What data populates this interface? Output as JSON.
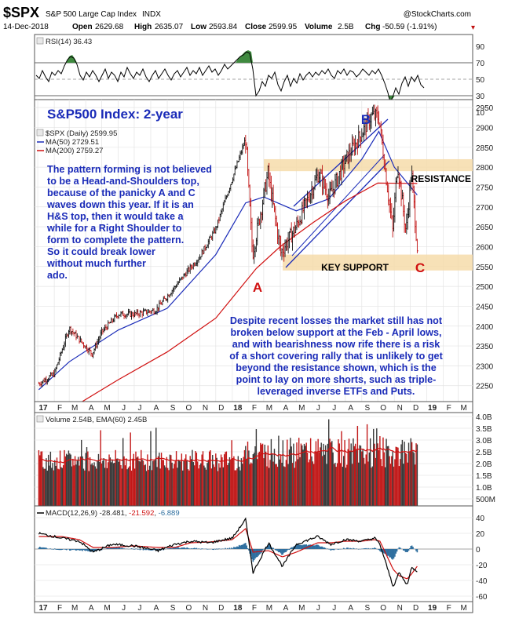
{
  "header": {
    "symbol": "$SPX",
    "name": "S&P 500 Large Cap Index",
    "exchange": "INDX",
    "watermark": "@StockCharts.com",
    "date": "14-Dec-2018",
    "open_label": "Open",
    "open": "2629.68",
    "high_label": "High",
    "high": "2635.07",
    "low_label": "Low",
    "low": "2593.84",
    "close_label": "Close",
    "close": "2599.95",
    "volume_label": "Volume",
    "volume": "2.5B",
    "chg_label": "Chg",
    "chg": "-50.59 (-1.91%)",
    "chg_marker": "▾"
  },
  "colors": {
    "price_bars": "#000000",
    "ma50": "#1a2bb8",
    "ma200": "#d01010",
    "annotation_text": "#1a2bb8",
    "zone_fill": "#f6dcaa",
    "macd_hist": "#2f6f9f",
    "rsi_fill": "#3f8a3f",
    "panel_bg": "#ffffff"
  },
  "rsi_panel": {
    "legend": "RSI(14) 36.43",
    "ticks": [
      "90",
      "70",
      "50",
      "30",
      "10"
    ]
  },
  "price_panel": {
    "chart_title": "S&P500 Index: 2-year",
    "legend_price": "$SPX (Daily) 2599.95",
    "legend_ma50": "MA(50) 2729.51",
    "legend_ma200": "MA(200) 2759.27",
    "ticks": [
      "2950",
      "2900",
      "2850",
      "2800",
      "2750",
      "2700",
      "2650",
      "2600",
      "2550",
      "2500",
      "2450",
      "2400",
      "2350",
      "2300",
      "2250"
    ],
    "resistance_label": "RESISTANCE",
    "support_label": "KEY SUPPORT",
    "point_labels": [
      "A",
      "B",
      "C"
    ],
    "note_left": [
      "The pattern forming is not believed",
      "to be a Head-and-Shoulders top,",
      "because of the panicky A and C",
      "waves down this year. If it is an",
      "H&S top, then it would take a",
      "while for a Right Shoulder to",
      "form to complete the pattern.",
      "So it could break lower",
      "without much further",
      "ado."
    ],
    "note_right": [
      "Despite recent losses the market still has not",
      "broken below support at the Feb - April lows,",
      "and with bearishness now rife there is a risk",
      "of a short covering rally that is unlikely to get",
      "beyond the resistance shown, which is the",
      "point to lay on more shorts, such as triple-",
      "leveraged inverse ETFs and Puts."
    ]
  },
  "volume_panel": {
    "legend": "Volume 2.54B, EMA(60) 2.45B",
    "ticks": [
      "4.0B",
      "3.5B",
      "3.0B",
      "2.5B",
      "2.0B",
      "1.5B",
      "1.0B",
      "500M"
    ]
  },
  "macd_panel": {
    "legend_prefix": "MACD(12,26,9)",
    "macd": "-28.481",
    "signal": "-21.592",
    "hist": "-6.889",
    "ticks": [
      "40",
      "20",
      "0",
      "-20",
      "-40",
      "-60"
    ]
  },
  "x_axis": {
    "labels": [
      "17",
      "F",
      "M",
      "A",
      "M",
      "J",
      "J",
      "A",
      "S",
      "O",
      "N",
      "D",
      "18",
      "F",
      "M",
      "A",
      "M",
      "J",
      "J",
      "A",
      "S",
      "O",
      "N",
      "D",
      "19",
      "F",
      "M"
    ]
  },
  "chart_data": {
    "type": "line",
    "title": "S&P500 Index: 2-year",
    "x_range": [
      "2017-01",
      "2019-03"
    ],
    "series": [
      {
        "name": "$SPX (Daily)",
        "x": [
          "2017-01-03",
          "2017-02-01",
          "2017-03-01",
          "2017-04-13",
          "2017-05-01",
          "2017-06-01",
          "2017-07-01",
          "2017-08-10",
          "2017-09-01",
          "2017-10-01",
          "2017-11-01",
          "2017-12-01",
          "2018-01-26",
          "2018-02-08",
          "2018-03-09",
          "2018-04-02",
          "2018-05-01",
          "2018-06-12",
          "2018-07-02",
          "2018-08-01",
          "2018-09-20",
          "2018-10-03",
          "2018-10-29",
          "2018-11-07",
          "2018-11-23",
          "2018-12-03",
          "2018-12-14"
        ],
        "values": [
          2255,
          2280,
          2395,
          2330,
          2385,
          2430,
          2430,
          2440,
          2475,
          2525,
          2575,
          2645,
          2872,
          2580,
          2785,
          2585,
          2650,
          2785,
          2725,
          2815,
          2930,
          2925,
          2640,
          2810,
          2635,
          2790,
          2600
        ]
      },
      {
        "name": "MA(50)",
        "x": [
          "2017-01-03",
          "2017-03-01",
          "2017-06-01",
          "2017-09-01",
          "2017-12-01",
          "2018-01-26",
          "2018-03-01",
          "2018-05-01",
          "2018-07-01",
          "2018-09-01",
          "2018-10-03",
          "2018-11-01",
          "2018-12-14"
        ],
        "values": [
          2240,
          2310,
          2390,
          2445,
          2580,
          2710,
          2725,
          2690,
          2720,
          2820,
          2890,
          2800,
          2730
        ]
      },
      {
        "name": "MA(200)",
        "x": [
          "2017-03-01",
          "2017-06-01",
          "2017-09-01",
          "2017-12-01",
          "2018-02-15",
          "2018-04-01",
          "2018-06-01",
          "2018-08-01",
          "2018-10-01",
          "2018-12-14"
        ],
        "values": [
          2190,
          2265,
          2335,
          2420,
          2545,
          2600,
          2660,
          2715,
          2760,
          2759
        ]
      }
    ],
    "levels": [
      {
        "label": "RESISTANCE",
        "low": 2790,
        "high": 2820
      },
      {
        "label": "KEY SUPPORT",
        "low": 2540,
        "high": 2580
      }
    ],
    "points": [
      {
        "label": "A",
        "x": "2018-02-08",
        "y": 2540
      },
      {
        "label": "B",
        "x": "2018-09-20",
        "y": 2950
      },
      {
        "label": "C",
        "x": "2018-12-14",
        "y": 2550
      }
    ],
    "ylim": [
      2210,
      2970
    ],
    "indicators": {
      "rsi_last": 36.43,
      "volume_last": "2.54B",
      "volume_ema60": "2.45B",
      "macd": -28.481,
      "signal": -21.592,
      "histogram": -6.889
    }
  }
}
